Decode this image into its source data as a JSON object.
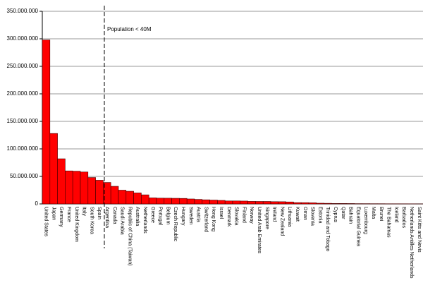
{
  "chart_data": {
    "type": "bar",
    "categories": [
      "United States",
      "Japan",
      "Germany",
      "France",
      "United Kingdom",
      "Italy",
      "South Korea",
      "Spain",
      "Argentina",
      "Canada",
      "Saudi Arabia",
      "Republic of China (Taiwan)",
      "Australia",
      "Netherlands",
      "Greece",
      "Portugal",
      "Belgium",
      "Czech Republic",
      "Hungary",
      "Sweden",
      "Austria",
      "Switzerland",
      "Hong Kong",
      "Israel",
      "Denmark",
      "Slovakia",
      "Finland",
      "Norway",
      "United Arab Emirates",
      "Singapore",
      "Ireland",
      "New Zealand",
      "Lithuania",
      "Kuwait",
      "Oman",
      "Slovenia",
      "Estonia",
      "Trinidad and Tobago",
      "Cyprus",
      "Qatar",
      "Bahrain",
      "Equatorial Guinea",
      "Luxembourg",
      "Malta",
      "Brunei",
      "The Bahamas",
      "Iceland",
      "Barbados",
      "Netherlands Antilles Netherlands",
      "Saint Kitts and Nevis"
    ],
    "values": [
      298000000,
      128000000,
      82000000,
      60000000,
      59500000,
      58000000,
      48000000,
      43000000,
      39000000,
      32000000,
      25000000,
      23000000,
      20000000,
      16500000,
      11000000,
      10500000,
      10400000,
      10200000,
      10000000,
      9000000,
      8200000,
      7500000,
      7000000,
      6400000,
      5400000,
      5400000,
      5200000,
      4600000,
      4500000,
      4500000,
      4100000,
      4000000,
      3600000,
      2400000,
      2300000,
      2000000,
      1300000,
      1100000,
      800000,
      800000,
      700000,
      500000,
      470000,
      400000,
      380000,
      300000,
      300000,
      280000,
      220000,
      40000
    ],
    "color": "#ff0000",
    "annotation": "Population < 40M",
    "ylim": [
      0,
      350000000
    ],
    "yticks": [
      0,
      {
        "value": 50000000,
        "label": "50.000.000"
      },
      {
        "value": 100000000,
        "label": "100.000.000"
      },
      {
        "value": 150000000,
        "label": "150.000.000"
      },
      {
        "value": 200000000,
        "label": "200.000.000"
      },
      {
        "value": 250000000,
        "label": "250.000.000"
      },
      {
        "value": 300000000,
        "label": "300.000.000"
      },
      {
        "value": 350000000,
        "label": "350.000.000"
      }
    ],
    "grid": true
  }
}
